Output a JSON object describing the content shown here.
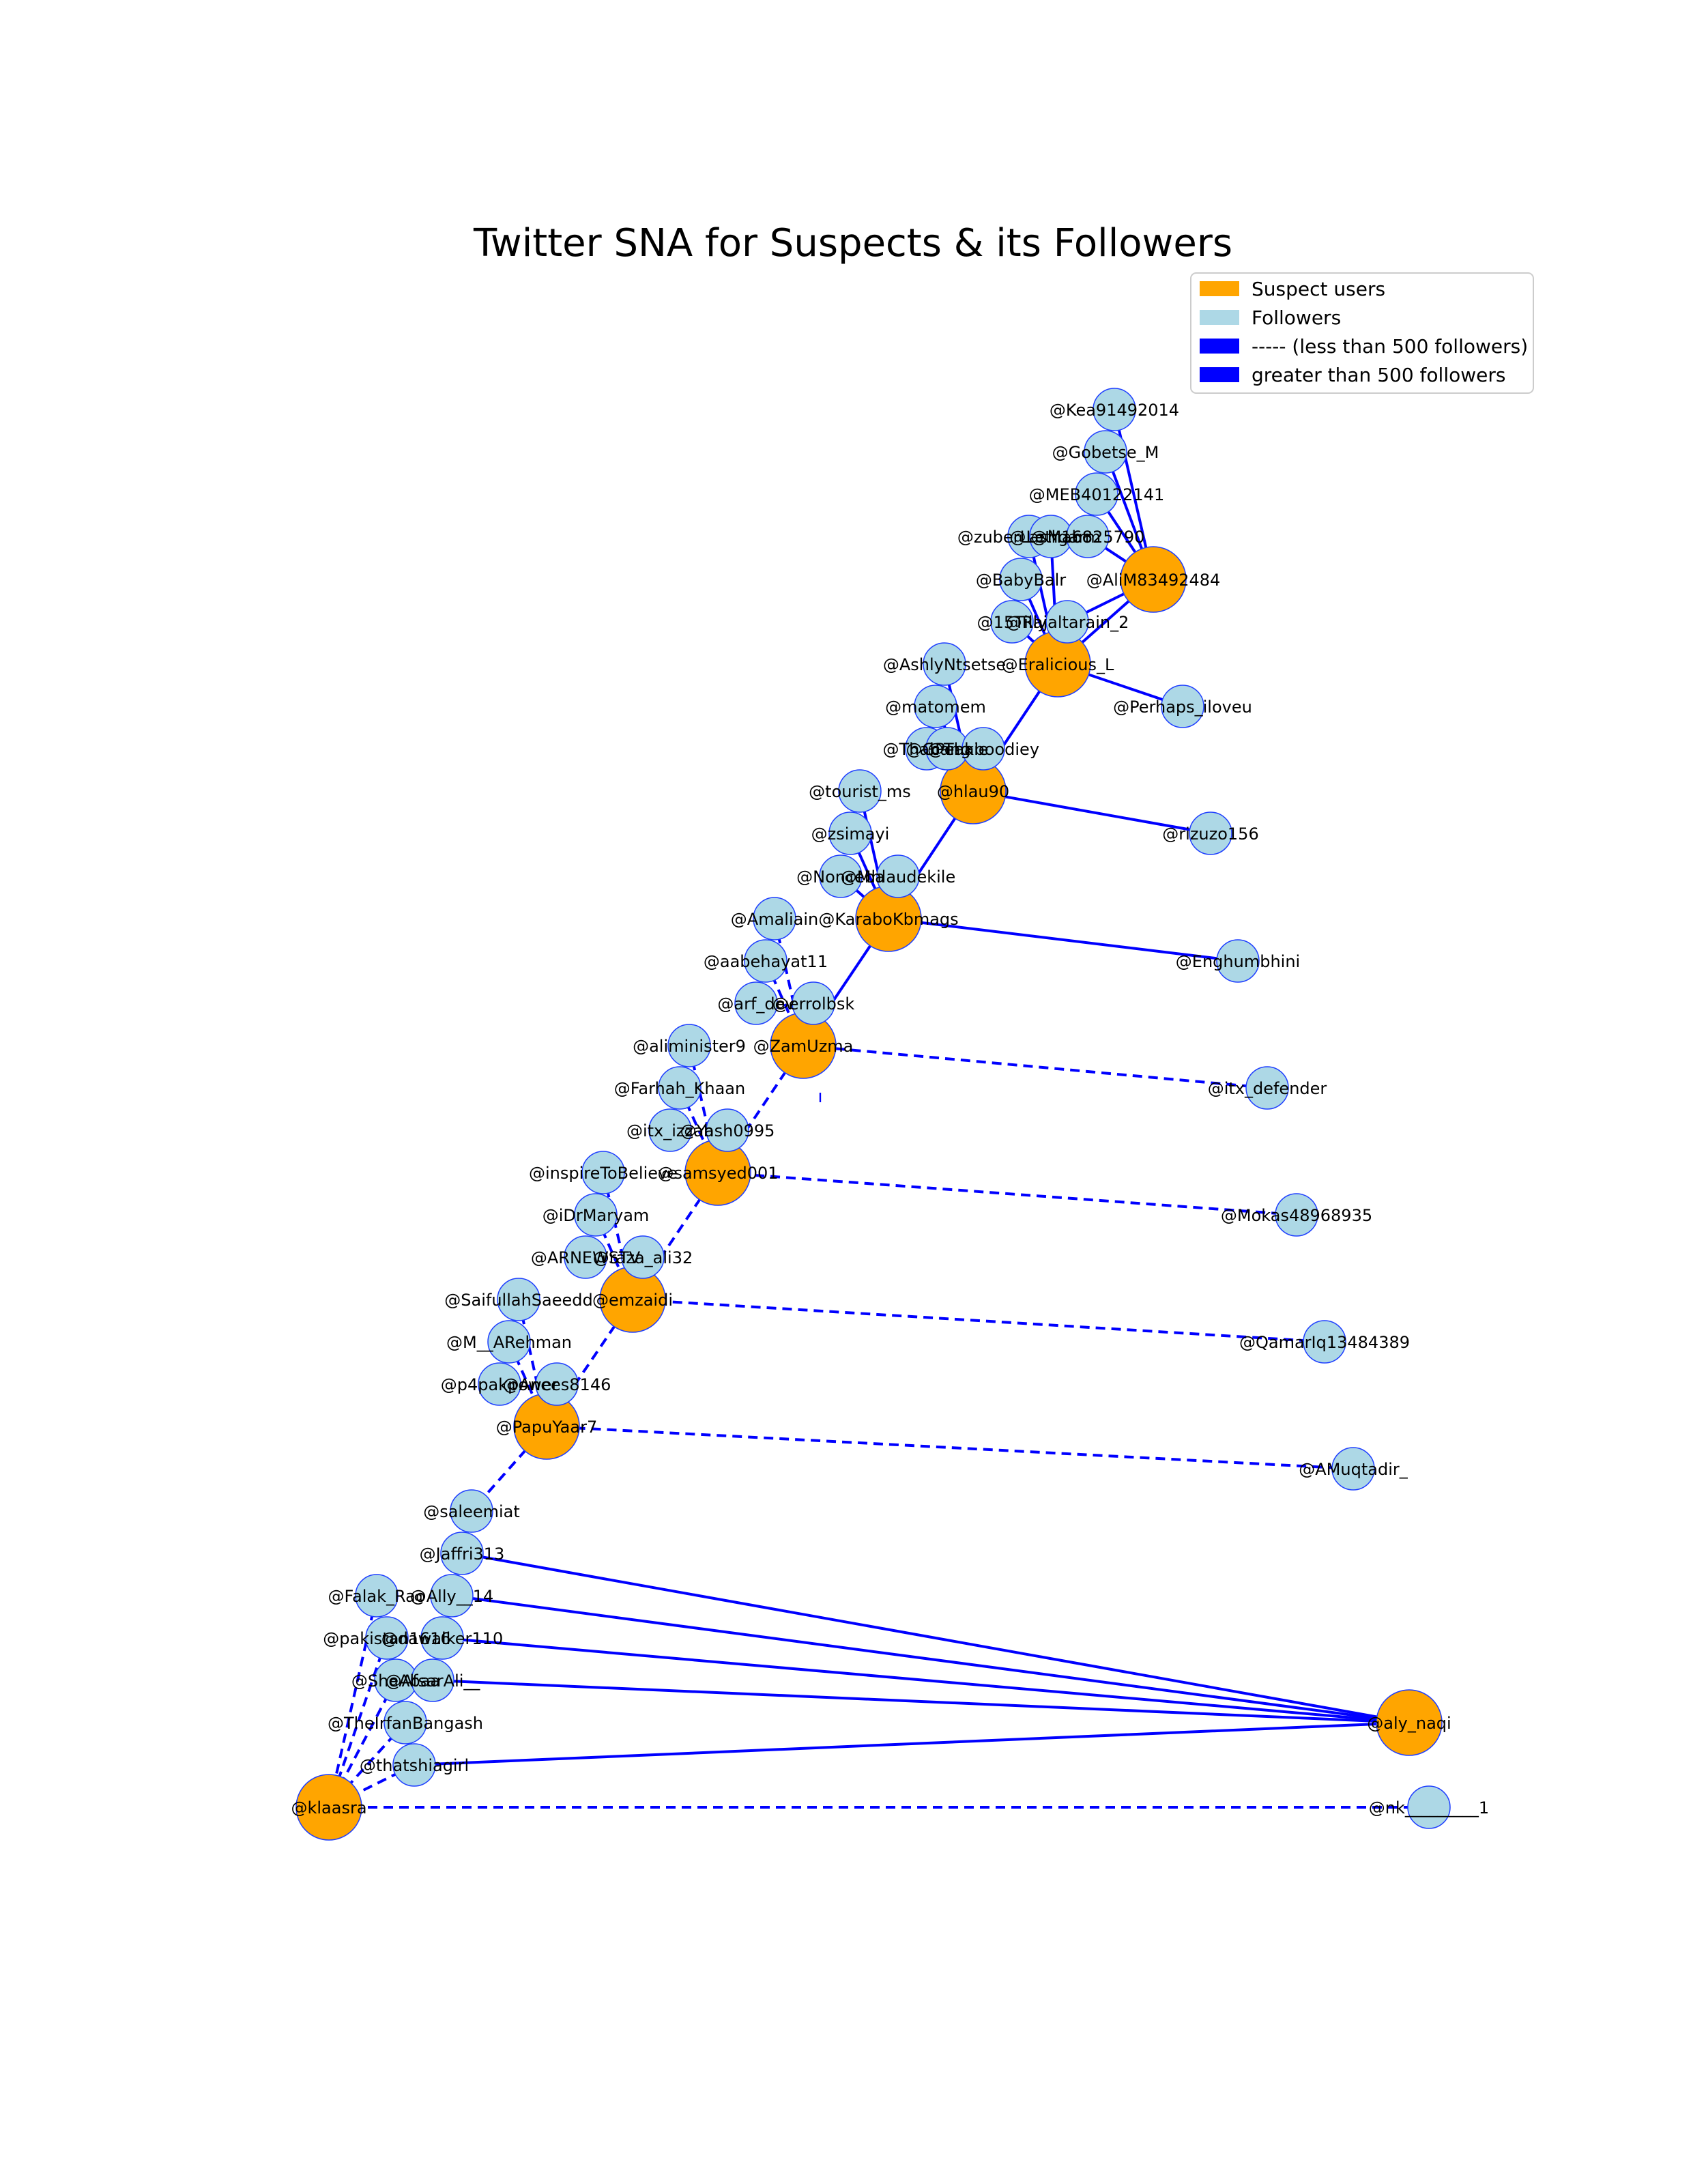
{
  "title": "Twitter SNA for Suspects & its Followers",
  "colors": {
    "suspect": "#FFA500",
    "follower": "#ADD8E6",
    "edge": "#0000FF",
    "node_border": "#1f3fff"
  },
  "legend": {
    "items": [
      {
        "label": "Suspect users",
        "color": "#FFA500"
      },
      {
        "label": "Followers",
        "color": "#ADD8E6"
      },
      {
        "label": "----- (less than 500 followers)",
        "color": "#0000FF"
      },
      {
        "label": "greater than 500 followers",
        "color": "#0000FF"
      }
    ]
  },
  "nodes": [
    {
      "id": "AliM83492484",
      "label": "@AliM83492484",
      "type": "suspect"
    },
    {
      "id": "Eralicious_L",
      "label": "@Eralicious_L",
      "type": "suspect"
    },
    {
      "id": "hlau90",
      "label": "@hlau90",
      "type": "suspect"
    },
    {
      "id": "KaraboKbmags",
      "label": "@KaraboKbmags",
      "type": "suspect"
    },
    {
      "id": "ZamUzma",
      "label": "@ZamUzma",
      "type": "suspect"
    },
    {
      "id": "samsyed001",
      "label": "@samsyed001",
      "type": "suspect"
    },
    {
      "id": "emzaidi",
      "label": "@emzaidi",
      "type": "suspect"
    },
    {
      "id": "PapuYaar7",
      "label": "@PapuYaar7",
      "type": "suspect"
    },
    {
      "id": "aly_naqi",
      "label": "@aly_naqi",
      "type": "suspect"
    },
    {
      "id": "klaasra",
      "label": "@klaasra",
      "type": "suspect"
    },
    {
      "id": "Kea91492014",
      "label": "@Kea91492014",
      "type": "follower"
    },
    {
      "id": "Gobetse_M",
      "label": "@Gobetse_M",
      "type": "follower"
    },
    {
      "id": "MEB40122141",
      "label": "@MEB40122141",
      "type": "follower"
    },
    {
      "id": "zuberLashgarm",
      "label": "@zuberLashgarm",
      "type": "follower"
    },
    {
      "id": "Lethabo",
      "label": "@Lethabo",
      "type": "follower"
    },
    {
      "id": "M16825790",
      "label": "@M16825790",
      "type": "follower"
    },
    {
      "id": "BabyBalr",
      "label": "@BabyBalr",
      "type": "follower"
    },
    {
      "id": "15Tilly",
      "label": "@15Tilly",
      "type": "follower"
    },
    {
      "id": "Rajaltarain_2",
      "label": "@Rajaltarain_2",
      "type": "follower"
    },
    {
      "id": "AshlyNtsetse",
      "label": "@AshlyNtsetse",
      "type": "follower"
    },
    {
      "id": "Perhaps_iloveu",
      "label": "@Perhaps_iloveu",
      "type": "follower"
    },
    {
      "id": "matomem",
      "label": "@matomem",
      "type": "follower"
    },
    {
      "id": "Thabang",
      "label": "@Thabang",
      "type": "follower"
    },
    {
      "id": "GPeakie",
      "label": "@GPeakie",
      "type": "follower"
    },
    {
      "id": "Thaboodiey",
      "label": "@Thaboodiey",
      "type": "follower"
    },
    {
      "id": "tourist_ms",
      "label": "@tourist_ms",
      "type": "follower"
    },
    {
      "id": "zsimayi",
      "label": "@zsimayi",
      "type": "follower"
    },
    {
      "id": "rizuzo156",
      "label": "@rizuzo156",
      "type": "follower"
    },
    {
      "id": "Nonceba",
      "label": "@Nonceba",
      "type": "follower"
    },
    {
      "id": "Mhlaudekile",
      "label": "@Mhlaudekile",
      "type": "follower"
    },
    {
      "id": "Amaliain",
      "label": "@Amaliain",
      "type": "follower"
    },
    {
      "id": "Enghumbhini",
      "label": "@Enghumbhini",
      "type": "follower"
    },
    {
      "id": "aabehayat11",
      "label": "@aabehayat11",
      "type": "follower"
    },
    {
      "id": "arf_dev",
      "label": "@arf_dev",
      "type": "follower"
    },
    {
      "id": "errolbsk",
      "label": "@errolbsk",
      "type": "follower"
    },
    {
      "id": "aliminister9",
      "label": "@aliminister9",
      "type": "follower"
    },
    {
      "id": "itx_defender",
      "label": "@itx_defender",
      "type": "follower"
    },
    {
      "id": "Farhah_Khaan",
      "label": "@Farhah_Khaan",
      "type": "follower"
    },
    {
      "id": "itx_izzah",
      "label": "@itx_izzah",
      "type": "follower"
    },
    {
      "id": "Yash0995",
      "label": "@Yash0995",
      "type": "follower"
    },
    {
      "id": "inspireToBelieve",
      "label": "@inspireToBelieve",
      "type": "follower"
    },
    {
      "id": "Mokas48968935",
      "label": "@Mokas48968935",
      "type": "follower"
    },
    {
      "id": "iDrMaryam",
      "label": "@iDrMaryam",
      "type": "follower"
    },
    {
      "id": "ARNEWSTV",
      "label": "@ARNEWSTV",
      "type": "follower"
    },
    {
      "id": "raza_ali32",
      "label": "@raza_ali32",
      "type": "follower"
    },
    {
      "id": "SaifullahSaeedd",
      "label": "@SaifullahSaeedd",
      "type": "follower"
    },
    {
      "id": "Qamarlq13484389",
      "label": "@QamarIq13484389",
      "type": "follower"
    },
    {
      "id": "M__ARehman",
      "label": "@M__ARehman",
      "type": "follower"
    },
    {
      "id": "p4pakpower",
      "label": "@p4pakpower",
      "type": "follower"
    },
    {
      "id": "Anees8146",
      "label": "@Anees8146",
      "type": "follower"
    },
    {
      "id": "AMuqtadir_",
      "label": "@AMuqtadir_",
      "type": "follower"
    },
    {
      "id": "saleemiat",
      "label": "@saleemiat",
      "type": "follower"
    },
    {
      "id": "Jaffri313",
      "label": "@Jaffri313",
      "type": "follower"
    },
    {
      "id": "Falak_Rao",
      "label": "@Falak_Rao",
      "type": "follower"
    },
    {
      "id": "Ally__14",
      "label": "@Ally__14",
      "type": "follower"
    },
    {
      "id": "pakistan1616",
      "label": "@pakistan1616",
      "type": "follower"
    },
    {
      "id": "dawalker110",
      "label": "@dawalker110",
      "type": "follower"
    },
    {
      "id": "SheAbaa",
      "label": "@SheAbaa",
      "type": "follower"
    },
    {
      "id": "AfsarAli__",
      "label": "@AfsarAli__",
      "type": "follower"
    },
    {
      "id": "TheIrfanBangash",
      "label": "@TheIrfanBangash",
      "type": "follower"
    },
    {
      "id": "thatshiagirl",
      "label": "@thatshiagirl",
      "type": "follower"
    },
    {
      "id": "nk_________1",
      "label": "@nk_________1",
      "type": "follower"
    }
  ],
  "edges": [
    {
      "from": "Kea91492014",
      "to": "AliM83492484",
      "style": "solid"
    },
    {
      "from": "Gobetse_M",
      "to": "AliM83492484",
      "style": "solid"
    },
    {
      "from": "MEB40122141",
      "to": "AliM83492484",
      "style": "solid"
    },
    {
      "from": "M16825790",
      "to": "AliM83492484",
      "style": "solid"
    },
    {
      "from": "Rajaltarain_2",
      "to": "AliM83492484",
      "style": "solid"
    },
    {
      "from": "AliM83492484",
      "to": "Eralicious_L",
      "style": "solid"
    },
    {
      "from": "zuberLashgarm",
      "to": "Eralicious_L",
      "style": "solid"
    },
    {
      "from": "Lethabo",
      "to": "Eralicious_L",
      "style": "solid"
    },
    {
      "from": "BabyBalr",
      "to": "Eralicious_L",
      "style": "solid"
    },
    {
      "from": "15Tilly",
      "to": "Eralicious_L",
      "style": "solid"
    },
    {
      "from": "Perhaps_iloveu",
      "to": "Eralicious_L",
      "style": "solid"
    },
    {
      "from": "Eralicious_L",
      "to": "hlau90",
      "style": "solid"
    },
    {
      "from": "AshlyNtsetse",
      "to": "hlau90",
      "style": "solid"
    },
    {
      "from": "matomem",
      "to": "hlau90",
      "style": "solid"
    },
    {
      "from": "Thabang",
      "to": "hlau90",
      "style": "solid"
    },
    {
      "from": "GPeakie",
      "to": "hlau90",
      "style": "solid"
    },
    {
      "from": "rizuzo156",
      "to": "hlau90",
      "style": "solid"
    },
    {
      "from": "hlau90",
      "to": "KaraboKbmags",
      "style": "solid"
    },
    {
      "from": "tourist_ms",
      "to": "KaraboKbmags",
      "style": "solid"
    },
    {
      "from": "zsimayi",
      "to": "KaraboKbmags",
      "style": "solid"
    },
    {
      "from": "Nonceba",
      "to": "KaraboKbmags",
      "style": "solid"
    },
    {
      "from": "Enghumbhini",
      "to": "KaraboKbmags",
      "style": "solid"
    },
    {
      "from": "KaraboKbmags",
      "to": "ZamUzma",
      "style": "solid"
    },
    {
      "from": "Amaliain",
      "to": "ZamUzma",
      "style": "dashed"
    },
    {
      "from": "aabehayat11",
      "to": "ZamUzma",
      "style": "dashed"
    },
    {
      "from": "itx_defender",
      "to": "ZamUzma",
      "style": "dashed"
    },
    {
      "from": "ZamUzma",
      "to": "samsyed001",
      "style": "dashed"
    },
    {
      "from": "aliminister9",
      "to": "samsyed001",
      "style": "dashed"
    },
    {
      "from": "Farhah_Khaan",
      "to": "samsyed001",
      "style": "dashed"
    },
    {
      "from": "Mokas48968935",
      "to": "samsyed001",
      "style": "dashed"
    },
    {
      "from": "samsyed001",
      "to": "emzaidi",
      "style": "dashed"
    },
    {
      "from": "inspireToBelieve",
      "to": "emzaidi",
      "style": "dashed"
    },
    {
      "from": "iDrMaryam",
      "to": "emzaidi",
      "style": "dashed"
    },
    {
      "from": "Qamarlq13484389",
      "to": "emzaidi",
      "style": "dashed"
    },
    {
      "from": "emzaidi",
      "to": "PapuYaar7",
      "style": "dashed"
    },
    {
      "from": "SaifullahSaeedd",
      "to": "PapuYaar7",
      "style": "dashed"
    },
    {
      "from": "M__ARehman",
      "to": "PapuYaar7",
      "style": "dashed"
    },
    {
      "from": "AMuqtadir_",
      "to": "PapuYaar7",
      "style": "dashed"
    },
    {
      "from": "PapuYaar7",
      "to": "saleemiat",
      "style": "dashed"
    },
    {
      "from": "Jaffri313",
      "to": "aly_naqi",
      "style": "solid"
    },
    {
      "from": "Ally__14",
      "to": "aly_naqi",
      "style": "solid"
    },
    {
      "from": "dawalker110",
      "to": "aly_naqi",
      "style": "solid"
    },
    {
      "from": "AfsarAli__",
      "to": "aly_naqi",
      "style": "solid"
    },
    {
      "from": "thatshiagirl",
      "to": "aly_naqi",
      "style": "solid"
    },
    {
      "from": "Falak_Rao",
      "to": "klaasra",
      "style": "dashed"
    },
    {
      "from": "pakistan1616",
      "to": "klaasra",
      "style": "dashed"
    },
    {
      "from": "SheAbaa",
      "to": "klaasra",
      "style": "dashed"
    },
    {
      "from": "TheIrfanBangash",
      "to": "klaasra",
      "style": "dashed"
    },
    {
      "from": "thatshiagirl",
      "to": "klaasra",
      "style": "dashed"
    },
    {
      "from": "nk_________1",
      "to": "klaasra",
      "style": "dashed"
    }
  ]
}
